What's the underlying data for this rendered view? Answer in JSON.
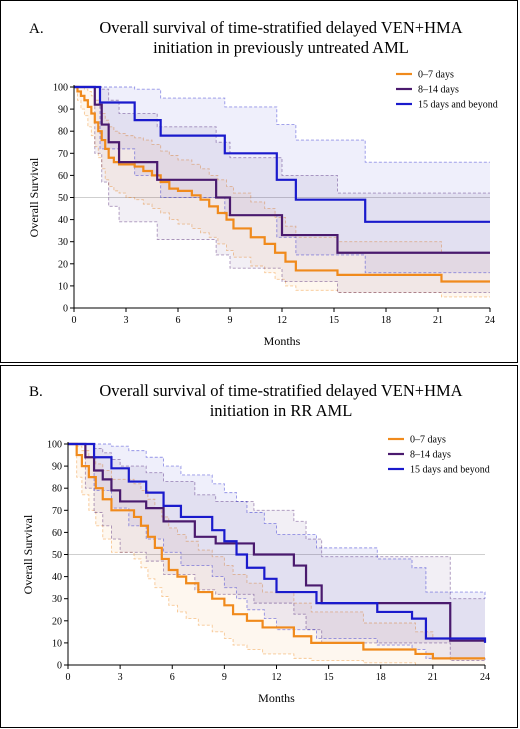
{
  "chart_data": [
    {
      "type": "line",
      "panel_label": "A.",
      "title_line1": "Overall survival of time-stratified delayed VEN+HMA",
      "title_line2": "initiation in previously untreated AML",
      "xlabel": "Months",
      "ylabel": "Overall Survival",
      "xlim": [
        0,
        24
      ],
      "ylim": [
        0,
        100
      ],
      "xticks": [
        "0",
        "3",
        "6",
        "9",
        "12",
        "15",
        "18",
        "21",
        "24"
      ],
      "yticks": [
        "0",
        "10",
        "20",
        "30",
        "40",
        "50",
        "60",
        "70",
        "80",
        "90",
        "100"
      ],
      "reference_line": 50,
      "legend_position": "top-right",
      "series": [
        {
          "name": "0–7 days",
          "color": "#f08a1c",
          "x": [
            0,
            0.2,
            0.4,
            0.6,
            0.8,
            1.0,
            1.2,
            1.4,
            1.6,
            1.8,
            2.0,
            2.3,
            2.6,
            3.0,
            3.5,
            4.0,
            4.5,
            5.0,
            5.5,
            6.0,
            6.8,
            7.3,
            7.8,
            8.3,
            8.8,
            9.2,
            10.2,
            11.0,
            11.6,
            12.2,
            12.8,
            15.2,
            21.2,
            24
          ],
          "y": [
            100,
            98,
            96,
            94,
            91,
            88,
            84,
            80,
            76,
            72,
            68,
            66,
            65,
            65,
            64,
            62,
            60,
            57,
            54,
            53,
            51,
            49,
            46,
            43,
            40,
            36,
            32,
            29,
            25,
            21,
            17,
            15,
            12,
            12
          ],
          "upper": [
            100,
            100,
            100,
            99,
            98,
            96,
            94,
            91,
            88,
            85,
            82,
            80,
            79,
            78,
            77,
            76,
            74,
            71,
            69,
            67,
            65,
            63,
            60,
            58,
            55,
            52,
            48,
            45,
            41,
            37,
            32,
            30,
            25,
            25
          ],
          "lower": [
            100,
            94,
            90,
            87,
            82,
            78,
            73,
            68,
            63,
            58,
            55,
            53,
            52,
            50,
            49,
            47,
            45,
            43,
            40,
            38,
            36,
            34,
            32,
            29,
            26,
            23,
            19,
            16,
            13,
            10,
            8,
            7,
            5,
            5
          ]
        },
        {
          "name": "8–14 days",
          "color": "#4a1a6e",
          "x": [
            0,
            1.2,
            1.6,
            2.0,
            2.6,
            4.8,
            8.2,
            9.0,
            12.0,
            15.2,
            24
          ],
          "y": [
            100,
            92,
            83,
            75,
            66,
            58,
            50,
            42,
            33,
            25,
            25
          ],
          "upper": [
            100,
            100,
            99,
            94,
            88,
            82,
            75,
            68,
            60,
            52,
            52
          ],
          "lower": [
            100,
            70,
            57,
            46,
            39,
            31,
            24,
            18,
            12,
            7,
            7
          ]
        },
        {
          "name": "15 days and beyond",
          "color": "#1a1acc",
          "x": [
            0,
            1.5,
            3.5,
            5.0,
            8.7,
            11.7,
            12.8,
            16.8,
            24
          ],
          "y": [
            100,
            93,
            85,
            78,
            70,
            58,
            49,
            39,
            39
          ],
          "upper": [
            100,
            100,
            99,
            95,
            91,
            83,
            76,
            66,
            66
          ],
          "lower": [
            100,
            72,
            60,
            50,
            42,
            32,
            24,
            16,
            16
          ]
        }
      ]
    },
    {
      "type": "line",
      "panel_label": "B.",
      "title_line1": "Overall survival of time-stratified delayed VEN+HMA",
      "title_line2": "initiation in RR AML",
      "xlabel": "Months",
      "ylabel": "Overall Survival",
      "xlim": [
        0,
        24
      ],
      "ylim": [
        0,
        100
      ],
      "xticks": [
        "0",
        "3",
        "6",
        "9",
        "12",
        "15",
        "18",
        "21",
        "24"
      ],
      "yticks": [
        "0",
        "10",
        "20",
        "30",
        "40",
        "50",
        "60",
        "70",
        "80",
        "90",
        "100"
      ],
      "reference_line": 50,
      "legend_position": "top-right",
      "series": [
        {
          "name": "0–7 days",
          "color": "#f08a1c",
          "x": [
            0,
            0.5,
            0.8,
            1.2,
            1.6,
            2.0,
            2.5,
            3.3,
            3.8,
            4.2,
            4.6,
            5.0,
            5.4,
            5.8,
            6.3,
            6.8,
            7.5,
            8.3,
            9.0,
            9.5,
            10.3,
            11.2,
            13.0,
            14.0,
            17.0,
            20.0,
            21.0,
            24
          ],
          "y": [
            100,
            95,
            90,
            85,
            80,
            75,
            70,
            70,
            67,
            63,
            58,
            53,
            48,
            43,
            40,
            37,
            33,
            30,
            27,
            23,
            20,
            17,
            13,
            10,
            7,
            5,
            3,
            3
          ],
          "upper": [
            100,
            99,
            97,
            94,
            91,
            88,
            84,
            84,
            82,
            79,
            75,
            71,
            67,
            62,
            59,
            56,
            52,
            49,
            45,
            41,
            37,
            33,
            28,
            24,
            19,
            15,
            12,
            12
          ],
          "lower": [
            100,
            85,
            77,
            70,
            63,
            57,
            51,
            51,
            48,
            44,
            39,
            35,
            31,
            27,
            24,
            21,
            18,
            15,
            12,
            9,
            7,
            5,
            3,
            2,
            1,
            0,
            0,
            0
          ]
        },
        {
          "name": "8–14 days",
          "color": "#4a1a6e",
          "x": [
            0,
            1.0,
            1.5,
            2.0,
            2.5,
            3.0,
            4.5,
            5.5,
            7.3,
            8.5,
            10.7,
            13.0,
            13.7,
            14.6,
            22.0,
            24
          ],
          "y": [
            100,
            94,
            88,
            84,
            79,
            74,
            71,
            65,
            58,
            55,
            50,
            45,
            36,
            28,
            11,
            11
          ],
          "upper": [
            100,
            100,
            98,
            96,
            93,
            90,
            87,
            83,
            77,
            74,
            70,
            65,
            57,
            49,
            30,
            30
          ],
          "lower": [
            100,
            80,
            69,
            63,
            57,
            51,
            47,
            41,
            34,
            32,
            28,
            23,
            16,
            10,
            2,
            2
          ]
        },
        {
          "name": "15 days and beyond",
          "color": "#1a1acc",
          "x": [
            0,
            1.5,
            2.5,
            3.5,
            4.5,
            5.5,
            6.5,
            8.3,
            9.0,
            9.7,
            10.3,
            11.3,
            12.0,
            14.3,
            17.8,
            19.8,
            20.6,
            24
          ],
          "y": [
            100,
            94,
            89,
            83,
            78,
            72,
            67,
            61,
            56,
            50,
            44,
            39,
            33,
            28,
            24,
            21,
            12,
            10
          ],
          "upper": [
            100,
            100,
            99,
            97,
            94,
            90,
            86,
            82,
            78,
            74,
            69,
            64,
            59,
            53,
            48,
            44,
            33,
            30
          ],
          "lower": [
            100,
            79,
            71,
            63,
            57,
            51,
            45,
            40,
            35,
            30,
            25,
            21,
            16,
            12,
            9,
            7,
            3,
            2
          ]
        }
      ]
    }
  ]
}
